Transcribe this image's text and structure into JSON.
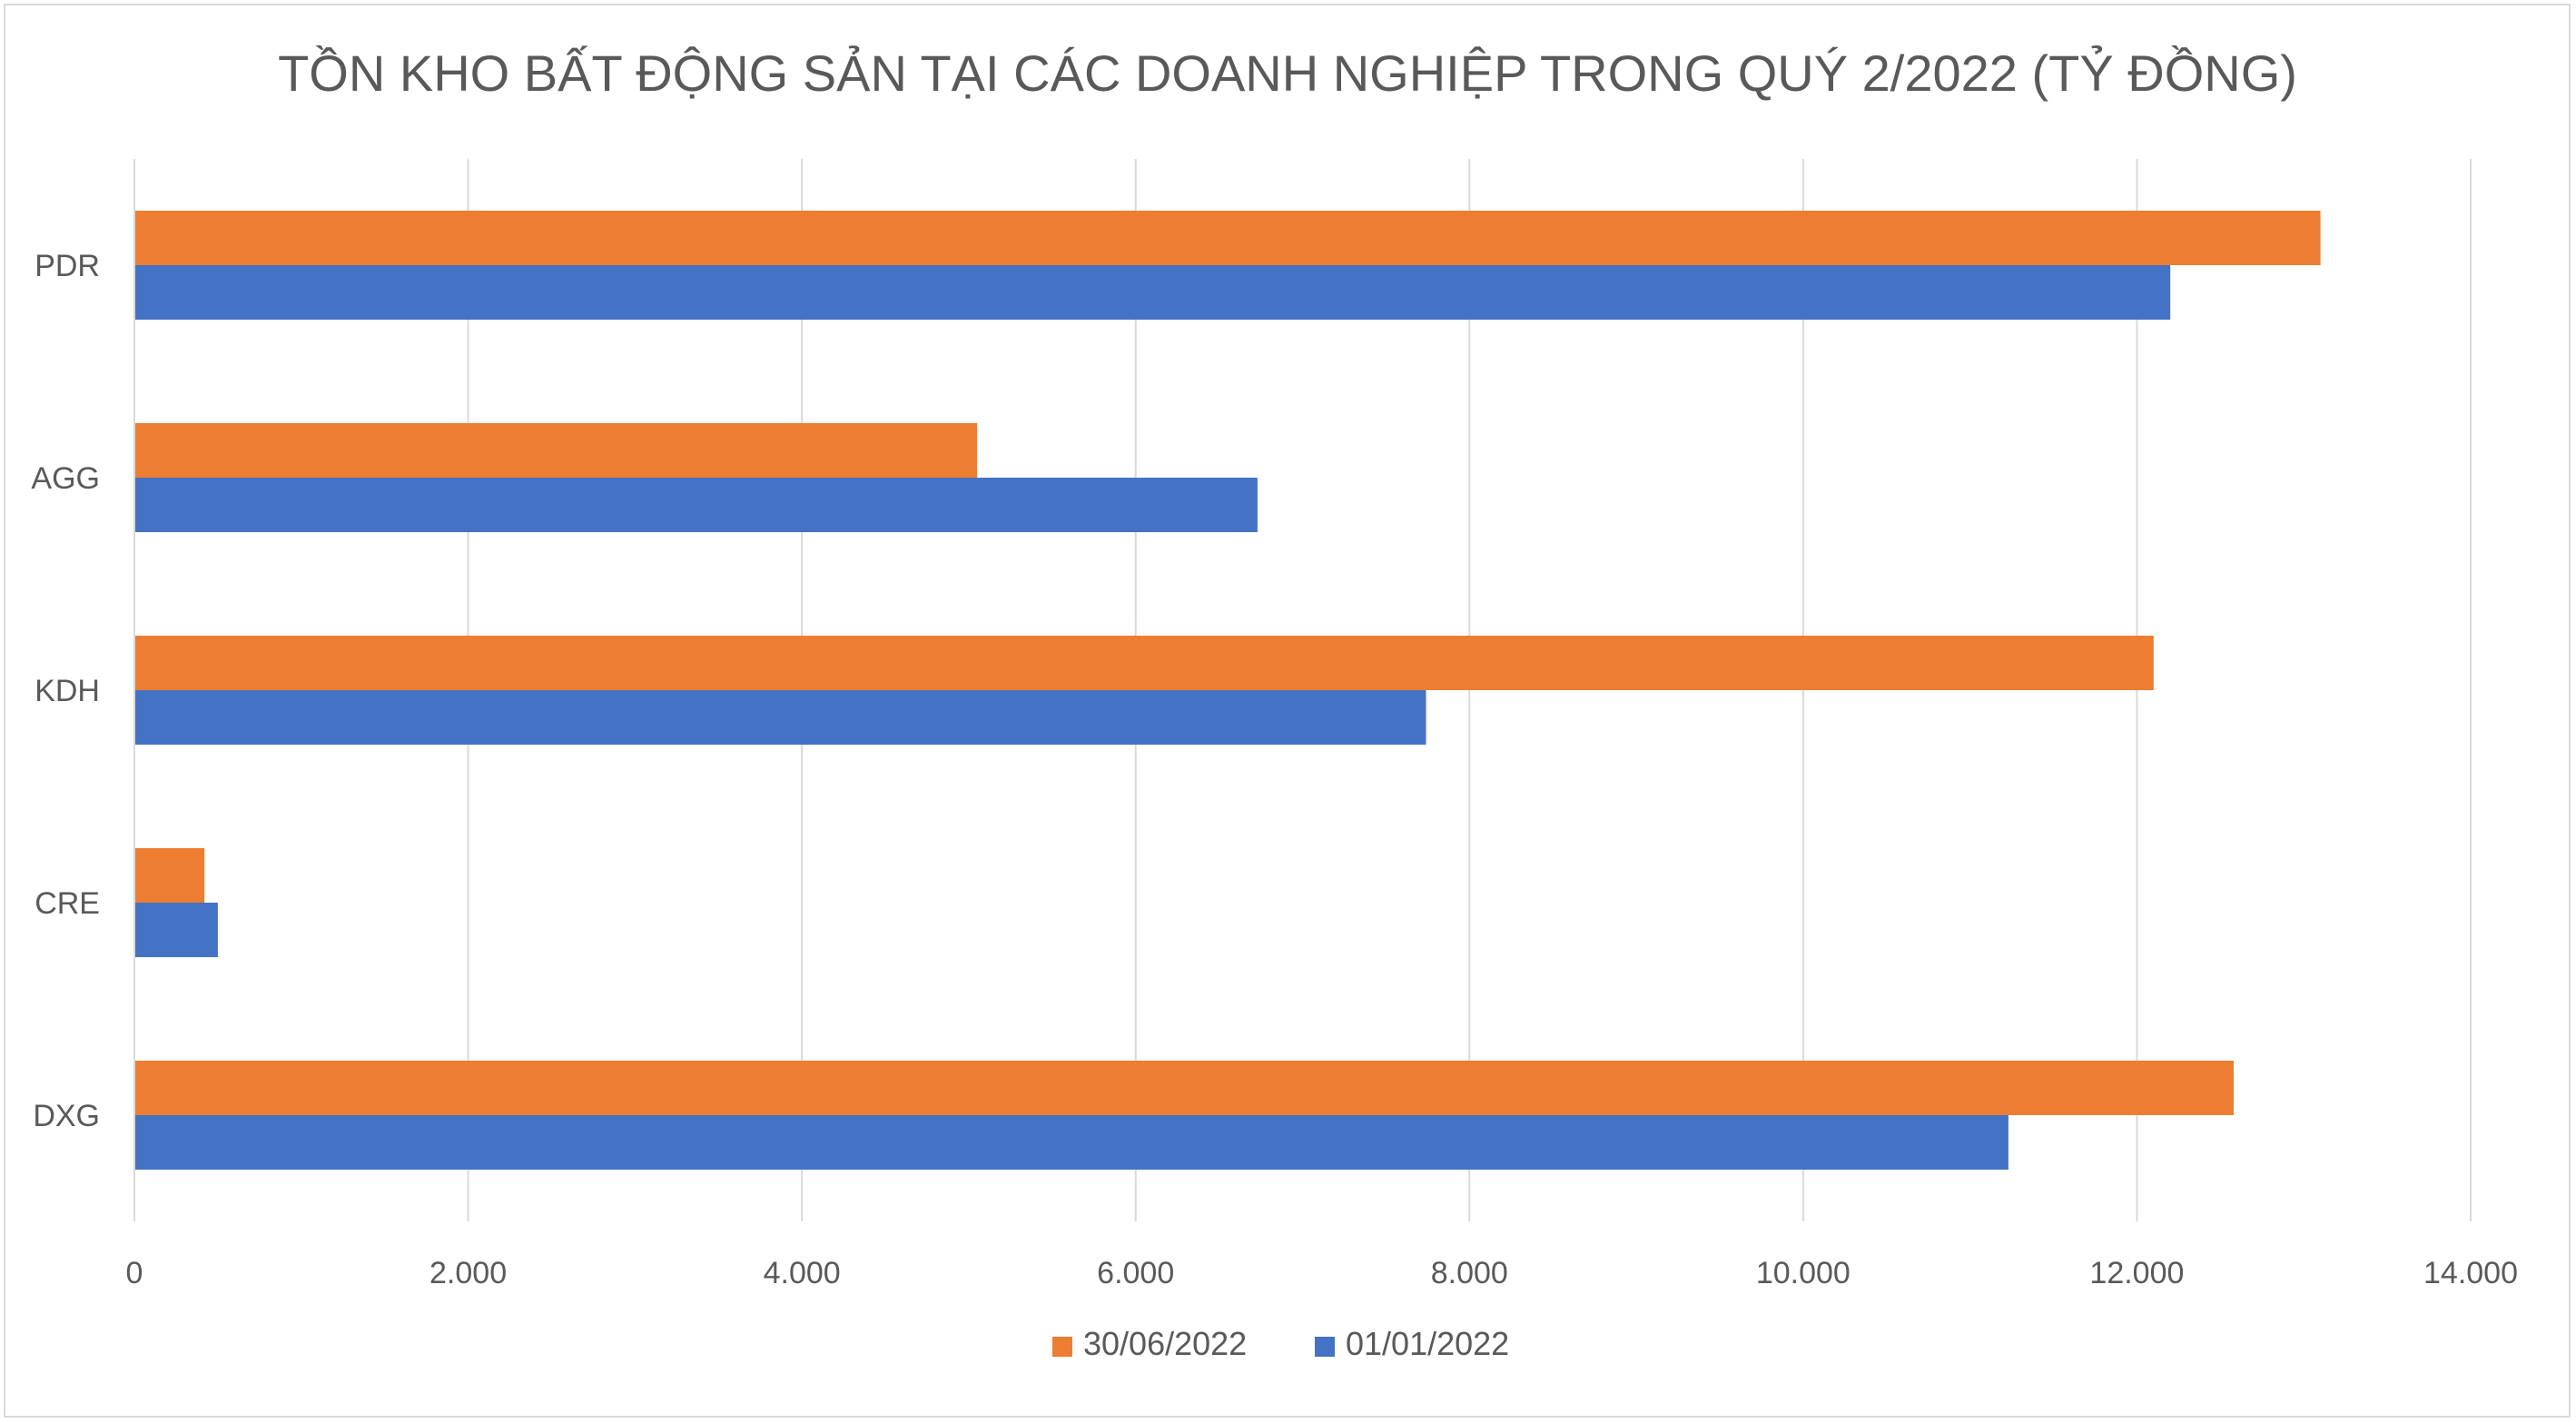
{
  "chart_data": {
    "type": "bar",
    "orientation": "horizontal",
    "title": "TỒN KHO BẤT ĐỘNG SẢN TẠI CÁC DOANH NGHIỆP TRONG QUÝ 2/2022 (TỶ ĐỒNG)",
    "categories": [
      "PDR",
      "AGG",
      "KDH",
      "CRE",
      "DXG"
    ],
    "series": [
      {
        "name": "30/06/2022",
        "color": "#ED7D31",
        "values": [
          13100,
          5050,
          12100,
          420,
          12580
        ]
      },
      {
        "name": "01/01/2022",
        "color": "#4472C4",
        "values": [
          12200,
          6730,
          7740,
          500,
          11230
        ]
      }
    ],
    "xlim": [
      0,
      14000
    ],
    "x_ticks": [
      0,
      2000,
      4000,
      6000,
      8000,
      10000,
      12000,
      14000
    ],
    "x_tick_labels": [
      "0",
      "2.000",
      "4.000",
      "6.000",
      "8.000",
      "10.000",
      "12.000",
      "14.000"
    ],
    "grid": "vertical",
    "legend_position": "bottom",
    "xlabel": "",
    "ylabel": ""
  }
}
